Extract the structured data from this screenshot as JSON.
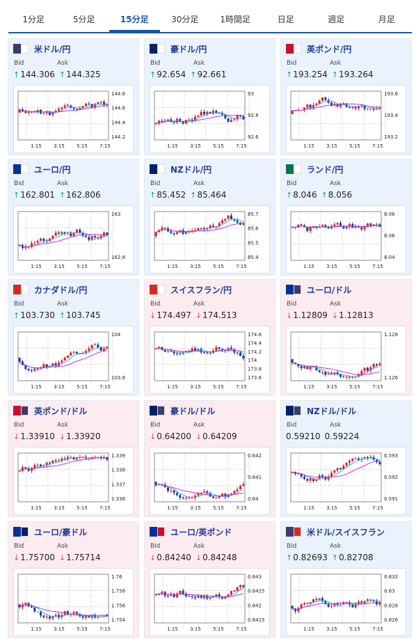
{
  "tabs": [
    {
      "label": "1分足",
      "active": false
    },
    {
      "label": "5分足",
      "active": false
    },
    {
      "label": "15分足",
      "active": true
    },
    {
      "label": "30分足",
      "active": false
    },
    {
      "label": "1時間足",
      "active": false
    },
    {
      "label": "日足",
      "active": false
    },
    {
      "label": "週足",
      "active": false
    },
    {
      "label": "月足",
      "active": false
    }
  ],
  "colors": {
    "accent": "#1a56a8",
    "up": "#1a9aa0",
    "down": "#d9534f",
    "candle_up": "#e02020",
    "candle_down": "#1f3a93",
    "ma_fast": "#29b6e8",
    "ma_slow": "#c832c8"
  },
  "bid_label": "Bid",
  "ask_label": "Ask",
  "cards": [
    {
      "pair": "米ドル/円",
      "flags": [
        "#3c3b6e",
        "#ffffff"
      ],
      "bg": "blue",
      "bid": "144.306",
      "ask": "144.325",
      "bid_dir": "up",
      "ask_dir": "up",
      "yticks": [
        "144.8",
        "144.6",
        "144.4",
        "144.2"
      ],
      "xticks": [
        "1:15",
        "3:15",
        "5:15",
        "7:15"
      ]
    },
    {
      "pair": "豪ドル/円",
      "flags": [
        "#012169",
        "#ffffff"
      ],
      "bg": "blue",
      "bid": "92.654",
      "ask": "92.661",
      "bid_dir": "up",
      "ask_dir": "up",
      "yticks": [
        "93",
        "92.8",
        "92.6"
      ],
      "xticks": [
        "1:15",
        "3:15",
        "5:15",
        "7:15"
      ]
    },
    {
      "pair": "英ポンド/円",
      "flags": [
        "#c8102e",
        "#ffffff"
      ],
      "bg": "blue",
      "bid": "193.254",
      "ask": "193.264",
      "bid_dir": "up",
      "ask_dir": "up",
      "yticks": [
        "193.6",
        "193.4",
        "193.2"
      ],
      "xticks": [
        "1:15",
        "3:15",
        "5:15",
        "7:15"
      ]
    },
    {
      "pair": "ユーロ/円",
      "flags": [
        "#003399",
        "#ffffff"
      ],
      "bg": "blue",
      "bid": "162.801",
      "ask": "162.806",
      "bid_dir": "up",
      "ask_dir": "up",
      "yticks": [
        "163",
        "162.8"
      ],
      "xticks": [
        "1:15",
        "3:15",
        "5:15",
        "7:15"
      ]
    },
    {
      "pair": "NZドル/円",
      "flags": [
        "#012169",
        "#ffffff"
      ],
      "bg": "blue",
      "bid": "85.452",
      "ask": "85.464",
      "bid_dir": "up",
      "ask_dir": "up",
      "yticks": [
        "85.7",
        "85.6",
        "85.5",
        "85.4"
      ],
      "xticks": [
        "1:15",
        "3:15",
        "5:15",
        "7:15"
      ]
    },
    {
      "pair": "ランド/円",
      "flags": [
        "#007a4d",
        "#ffffff"
      ],
      "bg": "blue",
      "bid": "8.046",
      "ask": "8.056",
      "bid_dir": "up",
      "ask_dir": "up",
      "yticks": [
        "8.06",
        "8.06",
        "8.04"
      ],
      "xticks": [
        "1:15",
        "3:15",
        "5:15",
        "7:15"
      ]
    },
    {
      "pair": "カナダドル/円",
      "flags": [
        "#d52b1e",
        "#ffffff"
      ],
      "bg": "blue",
      "bid": "103.730",
      "ask": "103.745",
      "bid_dir": "up",
      "ask_dir": "up",
      "yticks": [
        "104",
        "103.8"
      ],
      "xticks": [
        "1:15",
        "3:15",
        "5:15",
        "7:15"
      ]
    },
    {
      "pair": "スイスフラン/円",
      "flags": [
        "#da291c",
        "#ffffff"
      ],
      "bg": "pink",
      "bid": "174.497",
      "ask": "174.513",
      "bid_dir": "down",
      "ask_dir": "down",
      "yticks": [
        "174.6",
        "174.4",
        "174.2",
        "174",
        "173.8",
        "173.6"
      ],
      "xticks": [
        "1:15",
        "3:15",
        "5:15",
        "7:15"
      ]
    },
    {
      "pair": "ユーロ/ドル",
      "flags": [
        "#003399",
        "#3c3b6e"
      ],
      "bg": "pink",
      "bid": "1.12809",
      "ask": "1.12813",
      "bid_dir": "down",
      "ask_dir": "down",
      "yticks": [
        "1.128",
        "1.126"
      ],
      "xticks": [
        "1:15",
        "3:15",
        "5:15",
        "7:15"
      ]
    },
    {
      "pair": "英ポンド/ドル",
      "flags": [
        "#c8102e",
        "#3c3b6e"
      ],
      "bg": "pink",
      "bid": "1.33910",
      "ask": "1.33920",
      "bid_dir": "down",
      "ask_dir": "down",
      "yticks": [
        "1.339",
        "1.338",
        "1.337",
        "1.336"
      ],
      "xticks": [
        "1:15",
        "3:15",
        "5:15",
        "7:15"
      ]
    },
    {
      "pair": "豪ドル/ドル",
      "flags": [
        "#012169",
        "#3c3b6e"
      ],
      "bg": "pink",
      "bid": "0.64200",
      "ask": "0.64209",
      "bid_dir": "down",
      "ask_dir": "down",
      "yticks": [
        "0.642",
        "0.641",
        "0.64"
      ],
      "xticks": [
        "1:15",
        "3:15",
        "5:15",
        "7:15"
      ]
    },
    {
      "pair": "NZドル/ドル",
      "flags": [
        "#012169",
        "#3c3b6e"
      ],
      "bg": "blue",
      "bid": "0.59210",
      "ask": "0.59224",
      "bid_dir": "none",
      "ask_dir": "none",
      "yticks": [
        "0.593",
        "0.592",
        "0.591"
      ],
      "xticks": [
        "1:15",
        "3:15",
        "5:15",
        "7:15"
      ]
    },
    {
      "pair": "ユーロ/豪ドル",
      "flags": [
        "#003399",
        "#012169"
      ],
      "bg": "pink",
      "bid": "1.75700",
      "ask": "1.75714",
      "bid_dir": "down",
      "ask_dir": "down",
      "yticks": [
        "1.76",
        "1.758",
        "1.756",
        "1.754"
      ],
      "xticks": [
        "1:15",
        "3:15",
        "5:15",
        "7:15"
      ]
    },
    {
      "pair": "ユーロ/英ポンド",
      "flags": [
        "#003399",
        "#c8102e"
      ],
      "bg": "pink",
      "bid": "0.84240",
      "ask": "0.84248",
      "bid_dir": "down",
      "ask_dir": "down",
      "yticks": [
        "0.843",
        "0.8425",
        "0.842",
        "0.8415"
      ],
      "xticks": [
        "1:15",
        "3:15",
        "5:15",
        "7:15"
      ]
    },
    {
      "pair": "米ドル/スイスフラン",
      "flags": [
        "#3c3b6e",
        "#da291c"
      ],
      "bg": "blue",
      "bid": "0.82693",
      "ask": "0.82708",
      "bid_dir": "up",
      "ask_dir": "up",
      "yticks": [
        "0.832",
        "0.83",
        "0.828",
        "0.826"
      ],
      "xticks": [
        "1:15",
        "3:15",
        "5:15",
        "7:15"
      ]
    }
  ]
}
